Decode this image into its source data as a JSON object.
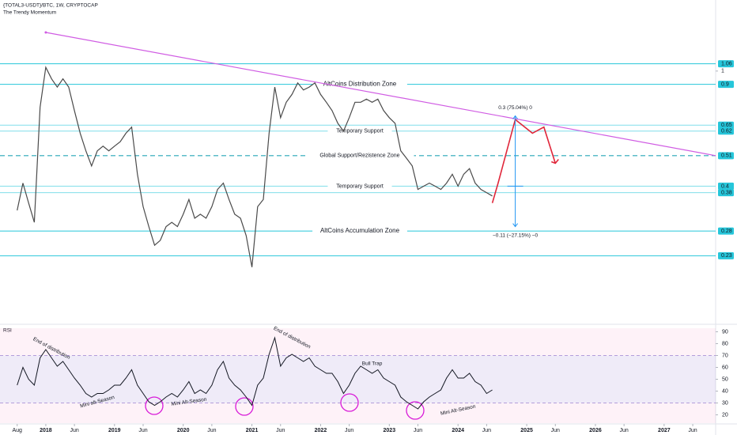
{
  "header": {
    "title": "{TOTAL3-USDT}/BTC, 1W, CRYPTOCAP",
    "subtitle": "The Trendy Momentum"
  },
  "chart_data": [
    {
      "type": "line",
      "log_scale": true,
      "color": "#4a4a4a",
      "x": [
        "2017-08",
        "2017-09",
        "2017-10",
        "2017-11",
        "2017-12",
        "2018-01",
        "2018-02",
        "2018-03",
        "2018-04",
        "2018-05",
        "2018-06",
        "2018-07",
        "2018-08",
        "2018-09",
        "2018-10",
        "2018-11",
        "2018-12",
        "2019-01",
        "2019-02",
        "2019-03",
        "2019-04",
        "2019-05",
        "2019-06",
        "2019-07",
        "2019-08",
        "2019-09",
        "2019-10",
        "2019-11",
        "2019-12",
        "2020-01",
        "2020-02",
        "2020-03",
        "2020-04",
        "2020-05",
        "2020-06",
        "2020-07",
        "2020-08",
        "2020-09",
        "2020-10",
        "2020-11",
        "2020-12",
        "2021-01",
        "2021-02",
        "2021-03",
        "2021-04",
        "2021-05",
        "2021-06",
        "2021-07",
        "2021-08",
        "2021-09",
        "2021-10",
        "2021-11",
        "2021-12",
        "2022-01",
        "2022-02",
        "2022-03",
        "2022-04",
        "2022-05",
        "2022-06",
        "2022-07",
        "2022-08",
        "2022-09",
        "2022-10",
        "2022-11",
        "2022-12",
        "2023-01",
        "2023-02",
        "2023-03",
        "2023-04",
        "2023-05",
        "2023-06",
        "2023-07",
        "2023-08",
        "2023-09",
        "2023-10",
        "2023-11",
        "2023-12",
        "2024-01",
        "2024-02",
        "2024-03",
        "2024-04",
        "2024-05",
        "2024-06",
        "2024-07"
      ],
      "values": [
        0.33,
        0.41,
        0.35,
        0.3,
        0.75,
        1.03,
        0.94,
        0.88,
        0.94,
        0.88,
        0.73,
        0.61,
        0.53,
        0.47,
        0.53,
        0.55,
        0.53,
        0.55,
        0.57,
        0.61,
        0.64,
        0.44,
        0.34,
        0.29,
        0.25,
        0.26,
        0.29,
        0.3,
        0.29,
        0.32,
        0.36,
        0.31,
        0.32,
        0.31,
        0.34,
        0.39,
        0.41,
        0.36,
        0.32,
        0.31,
        0.27,
        0.21,
        0.34,
        0.36,
        0.61,
        0.88,
        0.69,
        0.78,
        0.83,
        0.91,
        0.86,
        0.88,
        0.91,
        0.83,
        0.78,
        0.73,
        0.66,
        0.62,
        0.69,
        0.78,
        0.78,
        0.8,
        0.78,
        0.8,
        0.73,
        0.69,
        0.66,
        0.53,
        0.5,
        0.47,
        0.39,
        0.4,
        0.41,
        0.4,
        0.39,
        0.41,
        0.44,
        0.4,
        0.44,
        0.46,
        0.41,
        0.39,
        0.38,
        0.37
      ],
      "xlim": [
        "2017-05",
        "2027-10"
      ],
      "ylim": [
        0.142,
        1.76
      ],
      "yticks": [
        1.06,
        1,
        0.9,
        0.65,
        0.62,
        0.51,
        0.4,
        0.38,
        0.28,
        0.23
      ],
      "levels": [
        {
          "value": 1.06,
          "color": "#26c6da"
        },
        {
          "value": 0.9,
          "color": "#26c6da",
          "label": "AltCoins Distribution Zone",
          "label_color": "#131722"
        },
        {
          "value": 0.65,
          "color": "#80deea"
        },
        {
          "value": 0.62,
          "color": "#80deea",
          "label": "Temporary Support",
          "label_color": "#26a6b8"
        },
        {
          "value": 0.51,
          "color": "#26a6b8",
          "style": "dashed",
          "label": "Global Support/Rezistence Zone",
          "label_color": "#26a6b8"
        },
        {
          "value": 0.4,
          "color": "#80deea",
          "label": "Temporary Support",
          "label_color": "#26a6b8"
        },
        {
          "value": 0.38,
          "color": "#80deea"
        },
        {
          "value": 0.28,
          "color": "#26c6da",
          "label": "AltCoins Accumulation Zone",
          "label_color": "#131722"
        },
        {
          "value": 0.23,
          "color": "#26c6da"
        }
      ],
      "trendline": {
        "color": "#d05ce3",
        "x": [
          "2018-01",
          "2027-10"
        ],
        "values": [
          1.36,
          0.51
        ]
      },
      "projection": {
        "color": "#e0263a",
        "x": [
          "2024-07",
          "2024-08",
          "2024-11",
          "2025-02",
          "2025-04",
          "2025-06"
        ],
        "values": [
          0.35,
          0.41,
          0.68,
          0.61,
          0.64,
          0.48
        ]
      },
      "measure": {
        "color": "#2196f3",
        "x": "2024-11",
        "base": 0.4,
        "up": 0.7,
        "down": 0.29,
        "up_label": "0.3 (75.04%) 0",
        "down_label": "−0.11 (−27.15%) −0",
        "label_color": "#e0456a"
      }
    },
    {
      "type": "line",
      "title": "RSI",
      "color": "#131722",
      "x": [
        "2017-08",
        "2017-09",
        "2017-10",
        "2017-11",
        "2017-12",
        "2018-01",
        "2018-02",
        "2018-03",
        "2018-04",
        "2018-05",
        "2018-06",
        "2018-07",
        "2018-08",
        "2018-09",
        "2018-10",
        "2018-11",
        "2018-12",
        "2019-01",
        "2019-02",
        "2019-03",
        "2019-04",
        "2019-05",
        "2019-06",
        "2019-07",
        "2019-08",
        "2019-09",
        "2019-10",
        "2019-11",
        "2019-12",
        "2020-01",
        "2020-02",
        "2020-03",
        "2020-04",
        "2020-05",
        "2020-06",
        "2020-07",
        "2020-08",
        "2020-09",
        "2020-10",
        "2020-11",
        "2020-12",
        "2021-01",
        "2021-02",
        "2021-03",
        "2021-04",
        "2021-05",
        "2021-06",
        "2021-07",
        "2021-08",
        "2021-09",
        "2021-10",
        "2021-11",
        "2021-12",
        "2022-01",
        "2022-02",
        "2022-03",
        "2022-04",
        "2022-05",
        "2022-06",
        "2022-07",
        "2022-08",
        "2022-09",
        "2022-10",
        "2022-11",
        "2022-12",
        "2023-01",
        "2023-02",
        "2023-03",
        "2023-04",
        "2023-05",
        "2023-06",
        "2023-07",
        "2023-08",
        "2023-09",
        "2023-10",
        "2023-11",
        "2023-12",
        "2024-01",
        "2024-02",
        "2024-03",
        "2024-04",
        "2024-05",
        "2024-06",
        "2024-07"
      ],
      "values": [
        45,
        60,
        50,
        45,
        68,
        75,
        68,
        61,
        65,
        58,
        51,
        45,
        38,
        35,
        38,
        38,
        41,
        45,
        45,
        51,
        58,
        45,
        38,
        31,
        28,
        31,
        35,
        38,
        35,
        41,
        48,
        38,
        41,
        38,
        45,
        58,
        65,
        51,
        45,
        41,
        35,
        28,
        45,
        51,
        71,
        85,
        61,
        68,
        71,
        68,
        65,
        68,
        61,
        58,
        55,
        55,
        48,
        38,
        45,
        55,
        61,
        58,
        55,
        58,
        51,
        48,
        45,
        35,
        31,
        28,
        25,
        31,
        35,
        38,
        41,
        51,
        58,
        51,
        51,
        55,
        48,
        45,
        38,
        41
      ],
      "xlim": [
        "2017-05",
        "2027-10"
      ],
      "ylim": [
        13,
        93
      ],
      "yticks": [
        20,
        30,
        40,
        50,
        60,
        70,
        80,
        90
      ],
      "band": [
        30,
        70
      ],
      "xticks": [
        {
          "value": "2017-08",
          "label": "Aug"
        },
        {
          "value": "2018-01",
          "label": "2018"
        },
        {
          "value": "2018-06",
          "label": "Jun"
        },
        {
          "value": "2019-01",
          "label": "2019"
        },
        {
          "value": "2019-06",
          "label": "Jun"
        },
        {
          "value": "2020-01",
          "label": "2020"
        },
        {
          "value": "2020-06",
          "label": "Jun"
        },
        {
          "value": "2021-01",
          "label": "2021"
        },
        {
          "value": "2021-06",
          "label": "Jun"
        },
        {
          "value": "2022-01",
          "label": "2022"
        },
        {
          "value": "2022-06",
          "label": "Jun"
        },
        {
          "value": "2023-01",
          "label": "2023"
        },
        {
          "value": "2023-06",
          "label": "Jun"
        },
        {
          "value": "2024-01",
          "label": "2024"
        },
        {
          "value": "2024-06",
          "label": "Jun"
        },
        {
          "value": "2025-01",
          "label": "2025"
        },
        {
          "value": "2025-06",
          "label": "Jun"
        },
        {
          "value": "2026-01",
          "label": "2026"
        },
        {
          "value": "2026-06",
          "label": "Jun"
        },
        {
          "value": "2027-01",
          "label": "2027"
        },
        {
          "value": "2027-06",
          "label": "Jun"
        }
      ],
      "annotations": [
        {
          "text": "End of distribution",
          "x": "2018-02",
          "value": 76
        },
        {
          "text": "Mini alt-Season",
          "x": "2018-10",
          "value": 31
        },
        {
          "text": "Mini Alt-Season",
          "x": "2020-02",
          "value": 31
        },
        {
          "text": "End of distribution",
          "x": "2021-08",
          "value": 85
        },
        {
          "text": "Bull Trap",
          "x": "2022-10",
          "value": 63
        },
        {
          "text": "Mini Alt-Season",
          "x": "2024-01",
          "value": 24
        }
      ]
    }
  ]
}
